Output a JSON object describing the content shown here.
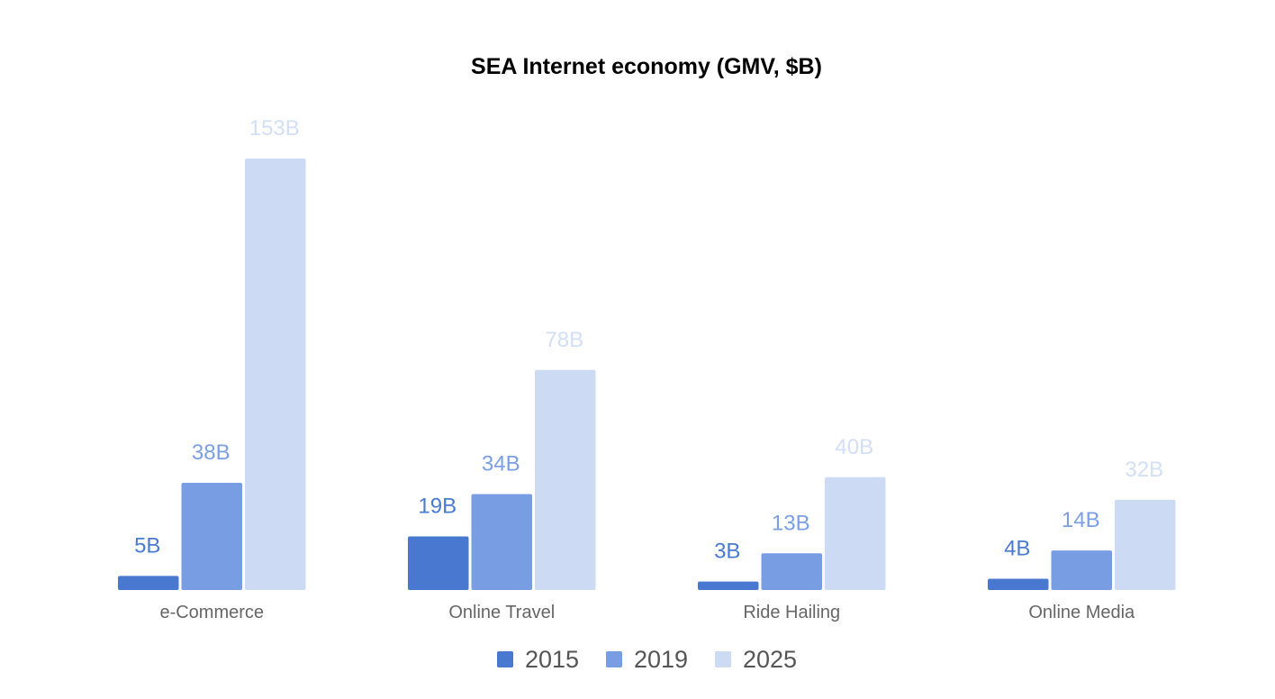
{
  "chart_data": {
    "type": "bar",
    "title": "SEA Internet economy (GMV, $B)",
    "xlabel": "",
    "ylabel": "",
    "ylim": [
      0,
      153
    ],
    "grid": false,
    "legend_position": "bottom",
    "categories": [
      "e-Commerce",
      "Online Travel",
      "Ride Hailing",
      "Online Media"
    ],
    "series": [
      {
        "name": "2015",
        "color": "#4878D0",
        "label_color": "#4A7BD1",
        "values": [
          5,
          19,
          3,
          4
        ],
        "labels": [
          "5B",
          "19B",
          "3B",
          "4B"
        ]
      },
      {
        "name": "2019",
        "color": "#789DE3",
        "label_color": "#7C9FE3",
        "values": [
          38,
          34,
          13,
          14
        ],
        "labels": [
          "38B",
          "34B",
          "13B",
          "14B"
        ]
      },
      {
        "name": "2025",
        "color": "#CCDAF4",
        "label_color": "#D3DFF6",
        "values": [
          153,
          78,
          40,
          32
        ],
        "labels": [
          "153B",
          "78B",
          "40B",
          "32B"
        ]
      }
    ]
  }
}
